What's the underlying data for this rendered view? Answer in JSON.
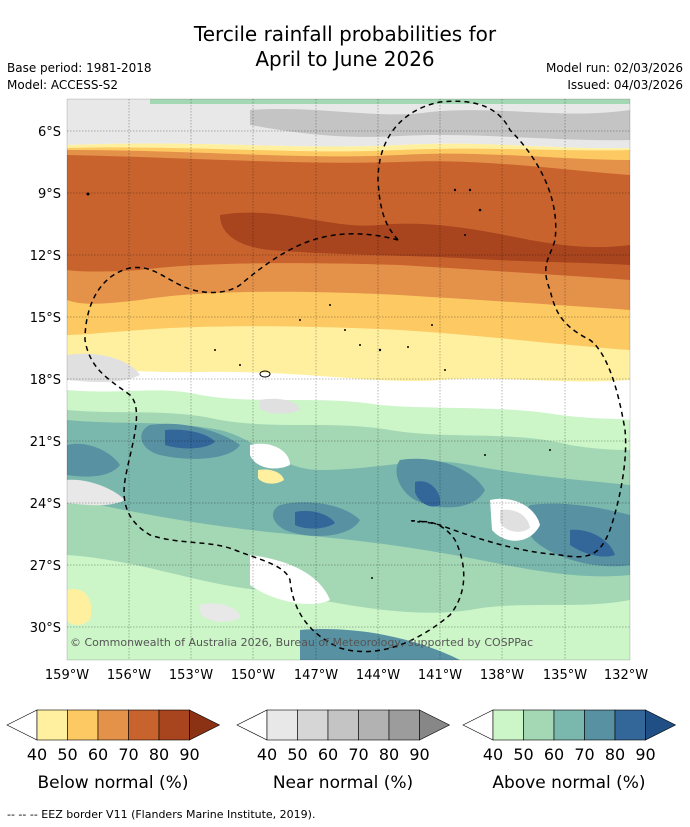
{
  "title_line1": "Tercile rainfall probabilities for",
  "title_line2": "April to June 2026",
  "base_period": "Base period: 1981-2018",
  "model": "Model: ACCESS-S2",
  "model_run": "Model run: 02/03/2026",
  "issued": "Issued: 04/03/2026",
  "credit": "© Commonwealth of Australia 2026, Bureau of Meteorology, supported by COSPPac",
  "lat_ticks": [
    "6°S",
    "9°S",
    "12°S",
    "15°S",
    "18°S",
    "21°S",
    "24°S",
    "27°S",
    "30°S"
  ],
  "lon_ticks": [
    "159°W",
    "156°W",
    "153°W",
    "150°W",
    "147°W",
    "144°W",
    "141°W",
    "138°W",
    "135°W",
    "132°W"
  ],
  "legends": [
    {
      "label": "Below normal (%)",
      "ticks": [
        "40",
        "50",
        "60",
        "70",
        "80",
        "90"
      ],
      "colors": [
        "#fff0a0",
        "#fdc962",
        "#e4914a",
        "#c9632e",
        "#a8441e",
        "#8a3213"
      ]
    },
    {
      "label": "Near normal (%)",
      "ticks": [
        "40",
        "50",
        "60",
        "70",
        "80",
        "90"
      ],
      "colors": [
        "#e8e8e8",
        "#d6d6d6",
        "#c4c4c4",
        "#b2b2b2",
        "#9c9c9c",
        "#878787"
      ]
    },
    {
      "label": "Above normal (%)",
      "ticks": [
        "40",
        "50",
        "60",
        "70",
        "80",
        "90"
      ],
      "colors": [
        "#ccf5c8",
        "#a4d8b4",
        "#7ab8ad",
        "#5891a2",
        "#33679a",
        "#1f4f84"
      ]
    }
  ],
  "footnote": "--  --  -- EEZ border V11 (Flanders Marine Institute, 2019)."
}
